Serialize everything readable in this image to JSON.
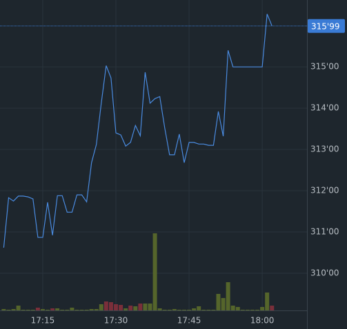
{
  "chart_data": {
    "type": "line",
    "categories": [
      null,
      null,
      null,
      null,
      null,
      null,
      null,
      null,
      "17:15",
      null,
      null,
      null,
      null,
      null,
      null,
      null,
      null,
      null,
      null,
      null,
      null,
      null,
      null,
      "17:30",
      null,
      null,
      null,
      null,
      null,
      null,
      null,
      null,
      null,
      null,
      null,
      null,
      null,
      null,
      "17:45",
      null,
      null,
      null,
      null,
      null,
      null,
      null,
      null,
      null,
      null,
      null,
      null,
      null,
      null,
      "18:00",
      null,
      null
    ],
    "series": [
      {
        "color": "#4a8be0",
        "values": [
          310.62,
          311.83,
          311.75,
          311.87,
          311.87,
          311.85,
          311.8,
          310.87,
          310.87,
          311.72,
          310.92,
          311.88,
          311.88,
          311.48,
          311.48,
          311.9,
          311.9,
          311.73,
          312.68,
          313.12,
          314.12,
          315.03,
          314.73,
          313.4,
          313.35,
          313.08,
          313.17,
          313.58,
          313.33,
          314.87,
          314.12,
          314.23,
          314.28,
          313.53,
          312.87,
          312.87,
          313.37,
          312.68,
          313.17,
          313.17,
          313.13,
          313.13,
          313.1,
          313.1,
          313.92,
          313.32,
          315.4,
          315.0,
          315.0,
          315.0,
          315.0,
          315.0,
          315.0,
          315.0,
          316.28,
          315.99
        ]
      }
    ],
    "volume": {
      "values": [
        2,
        1,
        2,
        7,
        1,
        1,
        1,
        4,
        2,
        1,
        3,
        3,
        1,
        1,
        4,
        1,
        1,
        1,
        2,
        2,
        9,
        13,
        12,
        9,
        8,
        3,
        7,
        6,
        10,
        10,
        10,
        112,
        3,
        1,
        1,
        2,
        1,
        1,
        1,
        3,
        6,
        1,
        1,
        1,
        24,
        18,
        41,
        7,
        5,
        1,
        1,
        1,
        1,
        5,
        26,
        7
      ],
      "colors": [
        "#55652b",
        "#55652b",
        "#55652b",
        "#55652b",
        "#55652b",
        "#55652b",
        "#55652b",
        "#7a2f3a",
        "#55652b",
        "#55652b",
        "#7a2f3a",
        "#55652b",
        "#55652b",
        "#55652b",
        "#55652b",
        "#55652b",
        "#55652b",
        "#55652b",
        "#55652b",
        "#55652b",
        "#55652b",
        "#7a2f3a",
        "#7a2f3a",
        "#7a2f3a",
        "#7a2f3a",
        "#55652b",
        "#7a2f3a",
        "#55652b",
        "#7a2f3a",
        "#55652b",
        "#55652b",
        "#55652b",
        "#55652b",
        "#55652b",
        "#55652b",
        "#55652b",
        "#55652b",
        "#55652b",
        "#55652b",
        "#55652b",
        "#55652b",
        "#55652b",
        "#55652b",
        "#55652b",
        "#55652b",
        "#55652b",
        "#55652b",
        "#55652b",
        "#55652b",
        "#55652b",
        "#55652b",
        "#55652b",
        "#55652b",
        "#55652b",
        "#55652b",
        "#7a2f3a"
      ]
    },
    "ylim": [
      309.1,
      316.62
    ],
    "yticks": [
      {
        "value": 310,
        "label": "310'00"
      },
      {
        "value": 311,
        "label": "311'00"
      },
      {
        "value": 312,
        "label": "312'00"
      },
      {
        "value": 313,
        "label": "313'00"
      },
      {
        "value": 314,
        "label": "314'00"
      },
      {
        "value": 315,
        "label": "315'00"
      }
    ],
    "last_price": {
      "value": 315.99,
      "label": "315'99",
      "color": "#3a7bd5"
    },
    "grid": true
  }
}
